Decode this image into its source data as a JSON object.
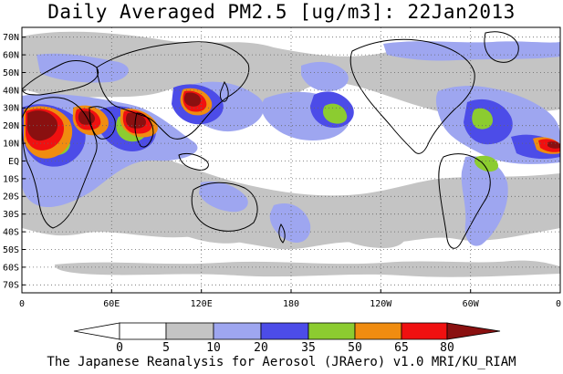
{
  "title": "Daily Averaged PM2.5 [ug/m3]: 22Jan2013",
  "footer": "The Japanese Reanalysis for Aerosol (JRAero) v1.0 MRI/KU_RIAM",
  "latitude_labels": [
    "70N",
    "60N",
    "50N",
    "40N",
    "30N",
    "20N",
    "10N",
    "EQ",
    "10S",
    "20S",
    "30S",
    "40S",
    "50S",
    "60S",
    "70S"
  ],
  "longitude_labels": [
    "0",
    "60E",
    "120E",
    "180",
    "120W",
    "60W",
    "0"
  ],
  "colorbar": {
    "labels": [
      "0",
      "5",
      "10",
      "20",
      "35",
      "50",
      "65",
      "80"
    ],
    "colors": [
      "#ffffff",
      "#c4c4c4",
      "#9ea6f0",
      "#4c4ce8",
      "#8ccc30",
      "#f08c10",
      "#f01010",
      "#8a1010"
    ]
  },
  "chart_data": {
    "type": "heatmap",
    "title": "Daily Averaged PM2.5 [ug/m3]: 22Jan2013",
    "variable": "PM2.5",
    "units": "ug/m3",
    "date": "22Jan2013",
    "lon_range": [
      0,
      360
    ],
    "lat_range": [
      -75,
      75
    ],
    "levels": [
      0,
      5,
      10,
      20,
      35,
      50,
      65,
      80
    ],
    "grid": true
  }
}
